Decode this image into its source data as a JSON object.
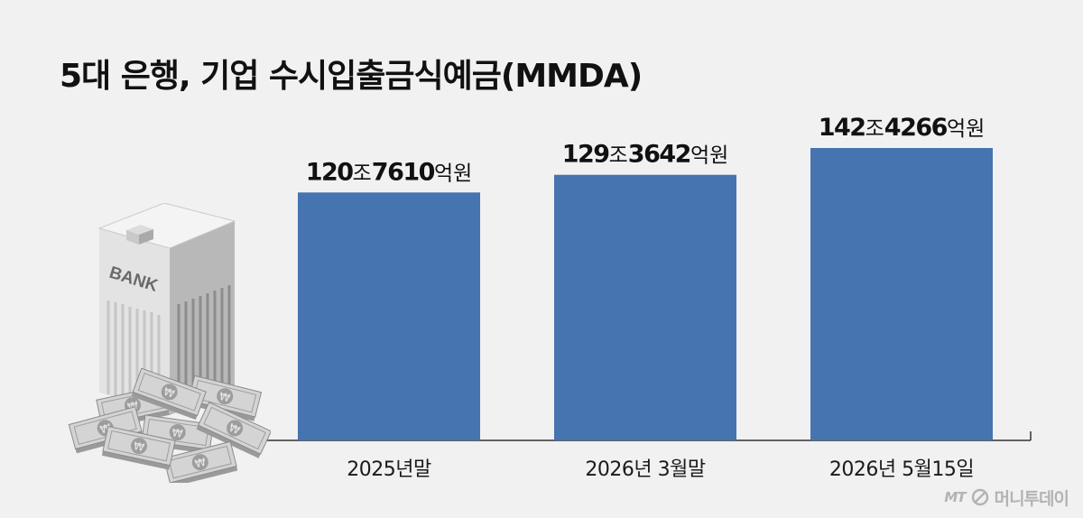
{
  "title": "5대 은행, 기업 수시입출금식예금(MMDA)",
  "chart_data": {
    "type": "bar",
    "categories": [
      "2025년말",
      "2026년 3월말",
      "2026년 5월15일"
    ],
    "values": [
      120.761,
      129.3642,
      142.4266
    ],
    "unit": "조원",
    "value_labels": [
      {
        "big1": "120",
        "small1": "조",
        "big2": "7610",
        "small2": "억원"
      },
      {
        "big1": "129",
        "small1": "조",
        "big2": "3642",
        "small2": "억원"
      },
      {
        "big1": "142",
        "small1": "조",
        "big2": "4266",
        "small2": "억원"
      }
    ],
    "bar_color": "#4674b1",
    "axis_color": "#333333",
    "ylim": [
      0,
      142.4266
    ]
  },
  "illustration": {
    "building_label": "BANK",
    "currency_symbol": "₩",
    "icon": "bank-building-with-money-icon"
  },
  "watermark": {
    "mt": "MT",
    "name": "머니투데이",
    "icon": "money-today-logo-icon"
  }
}
